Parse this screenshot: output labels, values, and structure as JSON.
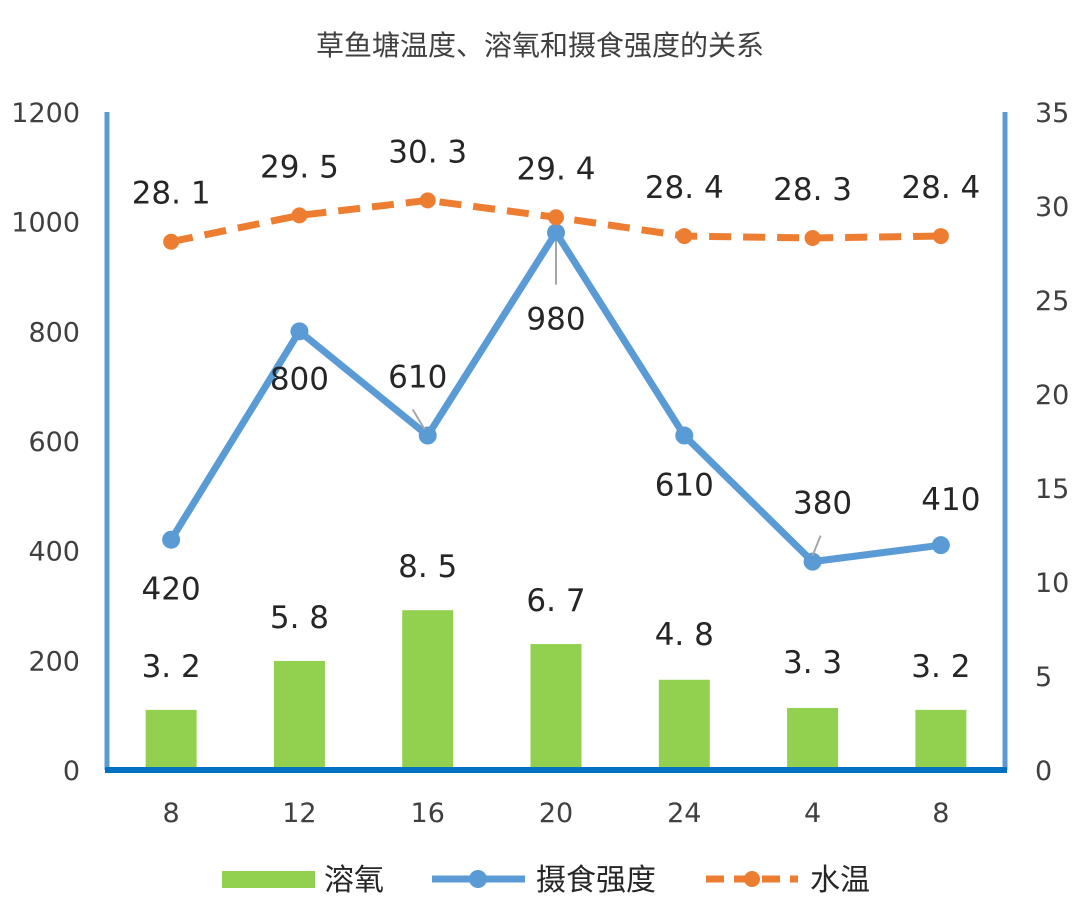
{
  "chart_data": {
    "type": "bar",
    "title": "草鱼塘温度、溶氧和摄食强度的关系",
    "categories": [
      "8",
      "12",
      "16",
      "20",
      "24",
      "4",
      "8"
    ],
    "y_left": {
      "min": 0,
      "max": 1200,
      "ticks": [
        "0",
        "200",
        "400",
        "600",
        "800",
        "1000",
        "1200"
      ]
    },
    "y_right": {
      "min": 0,
      "max": 35,
      "ticks": [
        "0",
        "5",
        "10",
        "15",
        "20",
        "25",
        "30",
        "35"
      ]
    },
    "series": [
      {
        "name": "溶氧",
        "type": "bar",
        "axis": "right",
        "color": "#92D050",
        "values": [
          3.2,
          5.8,
          8.5,
          6.7,
          4.8,
          3.3,
          3.2
        ],
        "labels": [
          "3. 2",
          "5. 8",
          "8. 5",
          "6. 7",
          "4. 8",
          "3. 3",
          "3. 2"
        ]
      },
      {
        "name": "摄食强度",
        "type": "line",
        "axis": "left",
        "color": "#5B9BD5",
        "values": [
          420,
          800,
          610,
          980,
          610,
          380,
          410
        ],
        "labels": [
          "420",
          "800",
          "610",
          "980",
          "610",
          "380",
          "410"
        ]
      },
      {
        "name": "水温",
        "type": "line-dashed",
        "axis": "right",
        "color": "#ED7D31",
        "values": [
          28.1,
          29.5,
          30.3,
          29.4,
          28.4,
          28.3,
          28.4
        ],
        "labels": [
          "28. 1",
          "29. 5",
          "30. 3",
          "29. 4",
          "28. 4",
          "28. 3",
          "28. 4"
        ]
      }
    ],
    "grid": false,
    "legend": "bottom"
  }
}
